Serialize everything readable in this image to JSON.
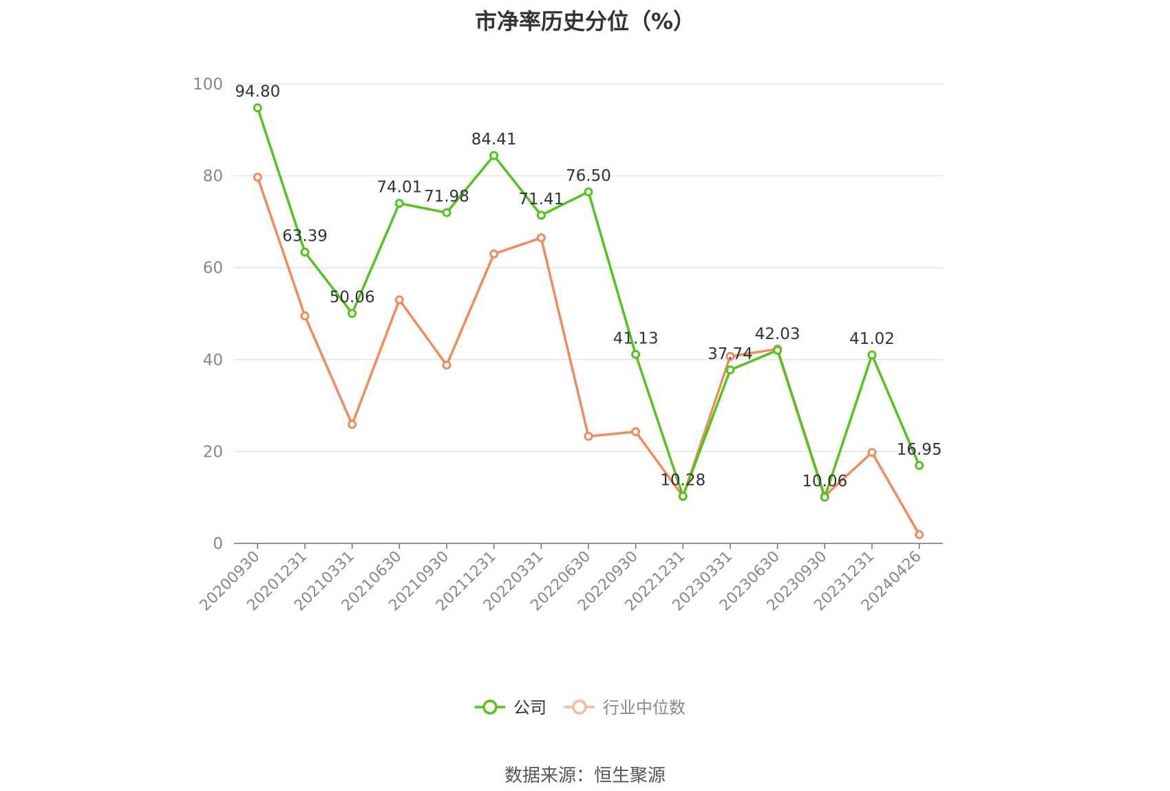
{
  "chart_data": {
    "type": "line",
    "title": "市净率历史分位（%）",
    "xlabel": "",
    "ylabel": "",
    "ylim": [
      0,
      100
    ],
    "yticks": [
      0,
      20,
      40,
      60,
      80,
      100
    ],
    "grid": true,
    "legend_position": "bottom",
    "categories": [
      "20200930",
      "20201231",
      "20210331",
      "20210630",
      "20210930",
      "20211231",
      "20220331",
      "20220630",
      "20220930",
      "20221231",
      "20230331",
      "20230630",
      "20230930",
      "20231231",
      "20240426"
    ],
    "series": [
      {
        "name": "公司",
        "color": "#52c41a",
        "values": [
          94.8,
          63.39,
          50.06,
          74.01,
          71.98,
          84.41,
          71.41,
          76.5,
          41.13,
          10.28,
          37.74,
          42.03,
          10.06,
          41.02,
          16.95
        ],
        "labels": [
          "94.80",
          "63.39",
          "50.06",
          "74.01",
          "71.98",
          "84.41",
          "71.41",
          "76.50",
          "41.13",
          "10.28",
          "37.74",
          "42.03",
          "10.06",
          "41.02",
          "16.95"
        ],
        "show_labels": true
      },
      {
        "name": "行业中位数",
        "color": "#f5895a",
        "values": [
          79.7,
          49.5,
          25.9,
          53.0,
          38.8,
          63.0,
          66.5,
          23.3,
          24.3,
          10.2,
          40.7,
          42.3,
          10.3,
          19.8,
          1.9
        ],
        "show_labels": false
      }
    ],
    "source": "数据来源：恒生聚源"
  }
}
